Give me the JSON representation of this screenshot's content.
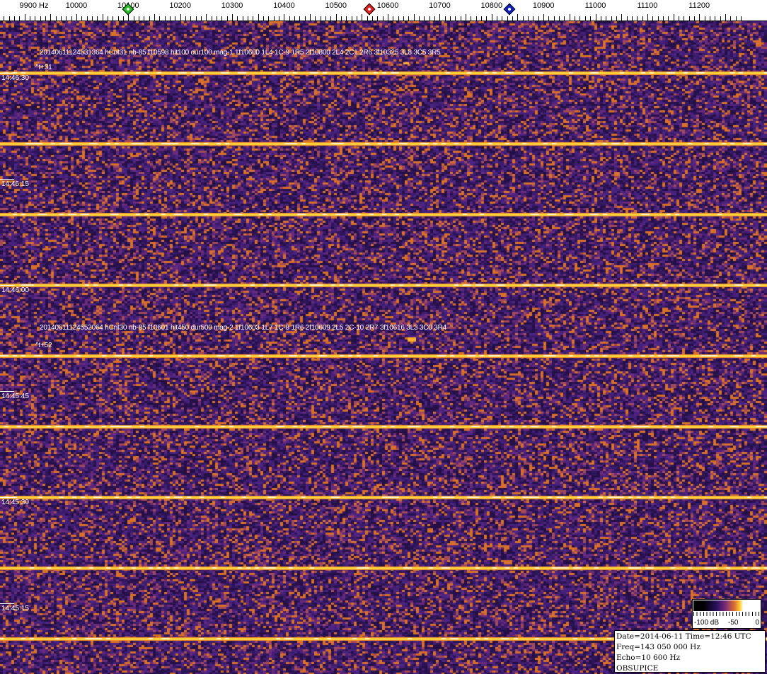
{
  "axis": {
    "unit_label": "9900 Hz",
    "ticks": [
      "10000",
      "10100",
      "10200",
      "10300",
      "10400",
      "10500",
      "10600",
      "10700",
      "10800",
      "10900",
      "11000",
      "11100",
      "11200"
    ],
    "tick_freqs": [
      10000,
      10100,
      10200,
      10300,
      10400,
      10500,
      10600,
      10700,
      10800,
      10900,
      11000,
      11100,
      11200
    ]
  },
  "markers": [
    {
      "name": "green-marker",
      "freq": 10100,
      "color": "#22c022"
    },
    {
      "name": "red-marker",
      "freq": 10565,
      "color": "#e02020"
    },
    {
      "name": "blue-marker",
      "freq": 10835,
      "color": "#1020c0"
    }
  ],
  "detections": [
    {
      "text": "20140611124631364 hCnt31 nb-85 f10598 hit100 dur100 mag-1 1f10600 1L4 1C-9 1R5 2f10800 2L4 2C1 2R6 3f10325 3L8 3C5 3R5",
      "offset": "^t+31"
    },
    {
      "text": "20140611124552064 hCnt30 nb-85 f10601 hit450 dur500 mag-2 1f10603 1L7 1C-8 1R6 2f10609 2L5 2C-10 2R7 3f10616 3L3 3C0 3R4",
      "offset": "^t+52"
    }
  ],
  "time_labels": [
    "14:46:30",
    "14:46:15",
    "14:46:00",
    "14:45:45",
    "14:45:30",
    "14:45:15"
  ],
  "colors": {
    "background": "#3b1c6a",
    "speckle": "#d8702a",
    "line": "#ffd23a"
  },
  "scale": {
    "min_label": "-100 dB",
    "mid_label": "-50",
    "max_label": "0"
  },
  "info": {
    "line1": "Date=2014-06-11 Time=12:46 UTC",
    "line2": "Freq=143 050 000 Hz",
    "line3": "Echo=10 600 Hz",
    "line4": "OBSUPICE"
  }
}
